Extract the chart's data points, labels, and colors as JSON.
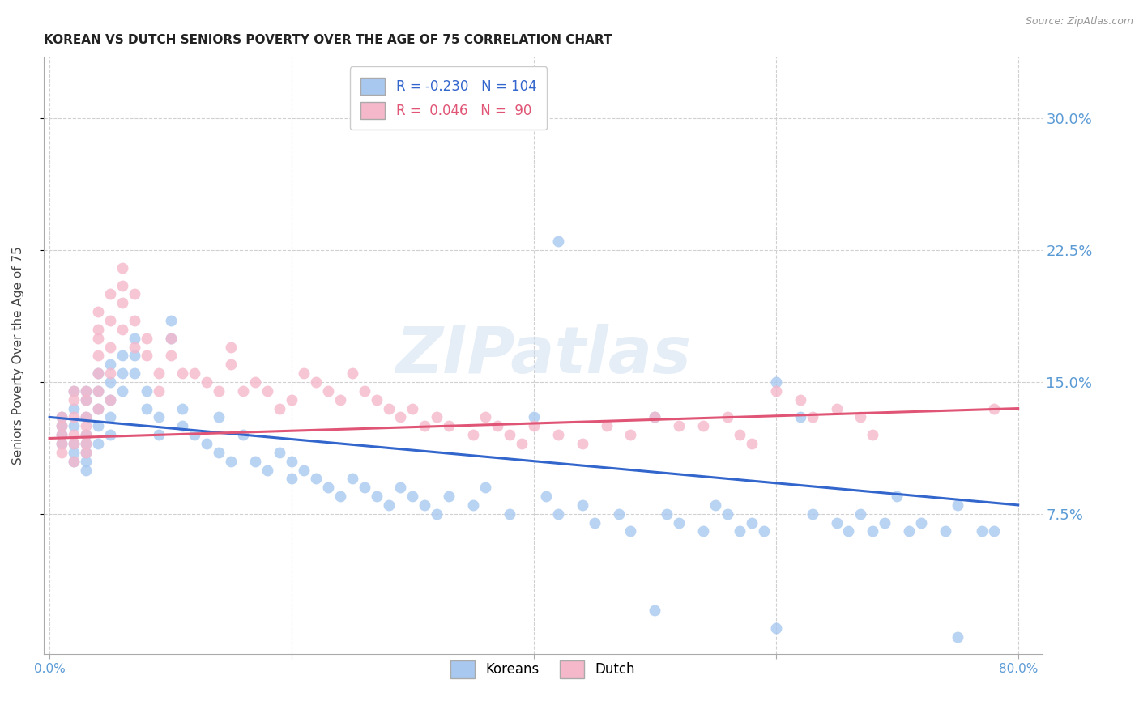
{
  "title": "KOREAN VS DUTCH SENIORS POVERTY OVER THE AGE OF 75 CORRELATION CHART",
  "source": "Source: ZipAtlas.com",
  "ylabel": "Seniors Poverty Over the Age of 75",
  "ytick_labels": [
    "30.0%",
    "22.5%",
    "15.0%",
    "7.5%"
  ],
  "ytick_values": [
    0.3,
    0.225,
    0.15,
    0.075
  ],
  "ylim": [
    -0.005,
    0.335
  ],
  "xlim": [
    -0.005,
    0.82
  ],
  "xtick_positions": [
    0.0,
    0.8
  ],
  "xtick_labels": [
    "0.0%",
    "80.0%"
  ],
  "legend_korean_R": "-0.230",
  "legend_korean_N": "104",
  "legend_dutch_R": "0.046",
  "legend_dutch_N": "90",
  "korean_color": "#a8c8f0",
  "dutch_color": "#f5b8cb",
  "trendline_korean_color": "#3366cc",
  "trendline_dutch_color": "#e05575",
  "background_color": "#ffffff",
  "grid_color": "#d0d0d0",
  "axis_label_color": "#5b9bd5",
  "title_color": "#222222",
  "watermark": "ZIPatlas",
  "korean_x": [
    0.01,
    0.01,
    0.01,
    0.01,
    0.02,
    0.02,
    0.02,
    0.02,
    0.02,
    0.02,
    0.03,
    0.03,
    0.03,
    0.03,
    0.03,
    0.03,
    0.03,
    0.03,
    0.04,
    0.04,
    0.04,
    0.04,
    0.04,
    0.05,
    0.05,
    0.05,
    0.05,
    0.05,
    0.06,
    0.06,
    0.06,
    0.07,
    0.07,
    0.07,
    0.08,
    0.08,
    0.09,
    0.09,
    0.1,
    0.1,
    0.11,
    0.11,
    0.12,
    0.13,
    0.14,
    0.14,
    0.15,
    0.16,
    0.17,
    0.18,
    0.19,
    0.2,
    0.2,
    0.21,
    0.22,
    0.23,
    0.24,
    0.25,
    0.26,
    0.27,
    0.28,
    0.29,
    0.3,
    0.31,
    0.32,
    0.33,
    0.35,
    0.36,
    0.38,
    0.4,
    0.41,
    0.42,
    0.44,
    0.45,
    0.47,
    0.48,
    0.5,
    0.51,
    0.52,
    0.54,
    0.55,
    0.56,
    0.57,
    0.58,
    0.59,
    0.6,
    0.62,
    0.63,
    0.65,
    0.66,
    0.67,
    0.68,
    0.69,
    0.7,
    0.71,
    0.72,
    0.74,
    0.75,
    0.77,
    0.78,
    0.42,
    0.5,
    0.6,
    0.75
  ],
  "korean_y": [
    0.13,
    0.125,
    0.12,
    0.115,
    0.145,
    0.135,
    0.125,
    0.115,
    0.11,
    0.105,
    0.145,
    0.14,
    0.13,
    0.12,
    0.115,
    0.11,
    0.105,
    0.1,
    0.155,
    0.145,
    0.135,
    0.125,
    0.115,
    0.16,
    0.15,
    0.14,
    0.13,
    0.12,
    0.165,
    0.155,
    0.145,
    0.175,
    0.165,
    0.155,
    0.145,
    0.135,
    0.13,
    0.12,
    0.185,
    0.175,
    0.135,
    0.125,
    0.12,
    0.115,
    0.13,
    0.11,
    0.105,
    0.12,
    0.105,
    0.1,
    0.11,
    0.105,
    0.095,
    0.1,
    0.095,
    0.09,
    0.085,
    0.095,
    0.09,
    0.085,
    0.08,
    0.09,
    0.085,
    0.08,
    0.075,
    0.085,
    0.08,
    0.09,
    0.075,
    0.13,
    0.085,
    0.075,
    0.08,
    0.07,
    0.075,
    0.065,
    0.13,
    0.075,
    0.07,
    0.065,
    0.08,
    0.075,
    0.065,
    0.07,
    0.065,
    0.15,
    0.13,
    0.075,
    0.07,
    0.065,
    0.075,
    0.065,
    0.07,
    0.085,
    0.065,
    0.07,
    0.065,
    0.08,
    0.065,
    0.065,
    0.23,
    0.02,
    0.01,
    0.005
  ],
  "dutch_x": [
    0.01,
    0.01,
    0.01,
    0.01,
    0.01,
    0.02,
    0.02,
    0.02,
    0.02,
    0.02,
    0.02,
    0.03,
    0.03,
    0.03,
    0.03,
    0.03,
    0.03,
    0.03,
    0.04,
    0.04,
    0.04,
    0.04,
    0.04,
    0.04,
    0.04,
    0.05,
    0.05,
    0.05,
    0.05,
    0.05,
    0.06,
    0.06,
    0.06,
    0.06,
    0.07,
    0.07,
    0.07,
    0.08,
    0.08,
    0.09,
    0.09,
    0.1,
    0.1,
    0.11,
    0.12,
    0.13,
    0.14,
    0.15,
    0.15,
    0.16,
    0.17,
    0.18,
    0.19,
    0.2,
    0.21,
    0.22,
    0.23,
    0.24,
    0.25,
    0.26,
    0.27,
    0.28,
    0.29,
    0.3,
    0.31,
    0.32,
    0.33,
    0.35,
    0.36,
    0.37,
    0.38,
    0.39,
    0.4,
    0.42,
    0.44,
    0.46,
    0.48,
    0.5,
    0.52,
    0.54,
    0.56,
    0.57,
    0.58,
    0.6,
    0.62,
    0.63,
    0.65,
    0.67,
    0.68,
    0.78
  ],
  "dutch_y": [
    0.13,
    0.125,
    0.12,
    0.115,
    0.11,
    0.145,
    0.14,
    0.13,
    0.12,
    0.115,
    0.105,
    0.145,
    0.14,
    0.13,
    0.125,
    0.12,
    0.115,
    0.11,
    0.19,
    0.18,
    0.175,
    0.165,
    0.155,
    0.145,
    0.135,
    0.2,
    0.185,
    0.17,
    0.155,
    0.14,
    0.215,
    0.205,
    0.195,
    0.18,
    0.2,
    0.185,
    0.17,
    0.175,
    0.165,
    0.155,
    0.145,
    0.175,
    0.165,
    0.155,
    0.155,
    0.15,
    0.145,
    0.17,
    0.16,
    0.145,
    0.15,
    0.145,
    0.135,
    0.14,
    0.155,
    0.15,
    0.145,
    0.14,
    0.155,
    0.145,
    0.14,
    0.135,
    0.13,
    0.135,
    0.125,
    0.13,
    0.125,
    0.12,
    0.13,
    0.125,
    0.12,
    0.115,
    0.125,
    0.12,
    0.115,
    0.125,
    0.12,
    0.13,
    0.125,
    0.125,
    0.13,
    0.12,
    0.115,
    0.145,
    0.14,
    0.13,
    0.135,
    0.13,
    0.12,
    0.135
  ]
}
